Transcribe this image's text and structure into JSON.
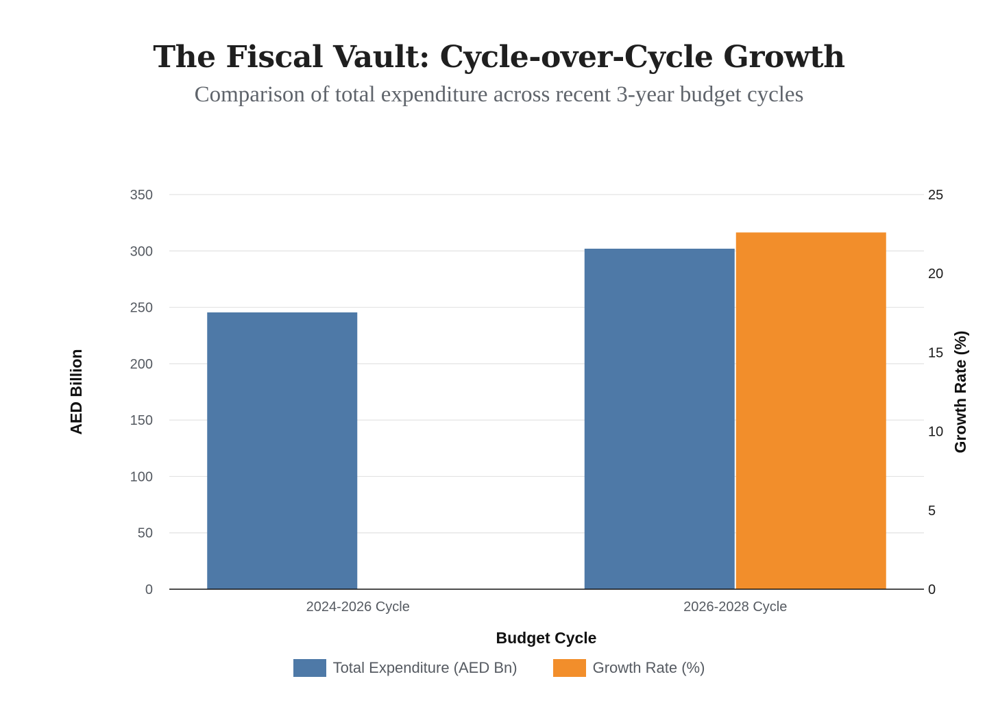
{
  "chart_data": {
    "type": "bar",
    "title": "The Fiscal Vault: Cycle-over-Cycle Growth",
    "subtitle": "Comparison of total expenditure across recent 3-year budget cycles",
    "xlabel": "Budget Cycle",
    "ylabel": "AED Billion",
    "y2label": "Growth Rate (%)",
    "categories": [
      "2024-2026 Cycle",
      "2026-2028 Cycle"
    ],
    "ylim": [
      0,
      350
    ],
    "y2lim": [
      0,
      25
    ],
    "yticks": [
      0,
      50,
      100,
      150,
      200,
      250,
      300,
      350
    ],
    "y2ticks": [
      0,
      5,
      10,
      15,
      20,
      25
    ],
    "grid": true,
    "legend_position": "bottom-center",
    "series": [
      {
        "name": "Total Expenditure (AED Bn)",
        "axis": "left",
        "color": "#4e79a7",
        "values": [
          245.5,
          302
        ]
      },
      {
        "name": "Growth Rate (%)",
        "axis": "right",
        "color": "#f28e2b",
        "values": [
          null,
          22.6
        ]
      }
    ]
  }
}
